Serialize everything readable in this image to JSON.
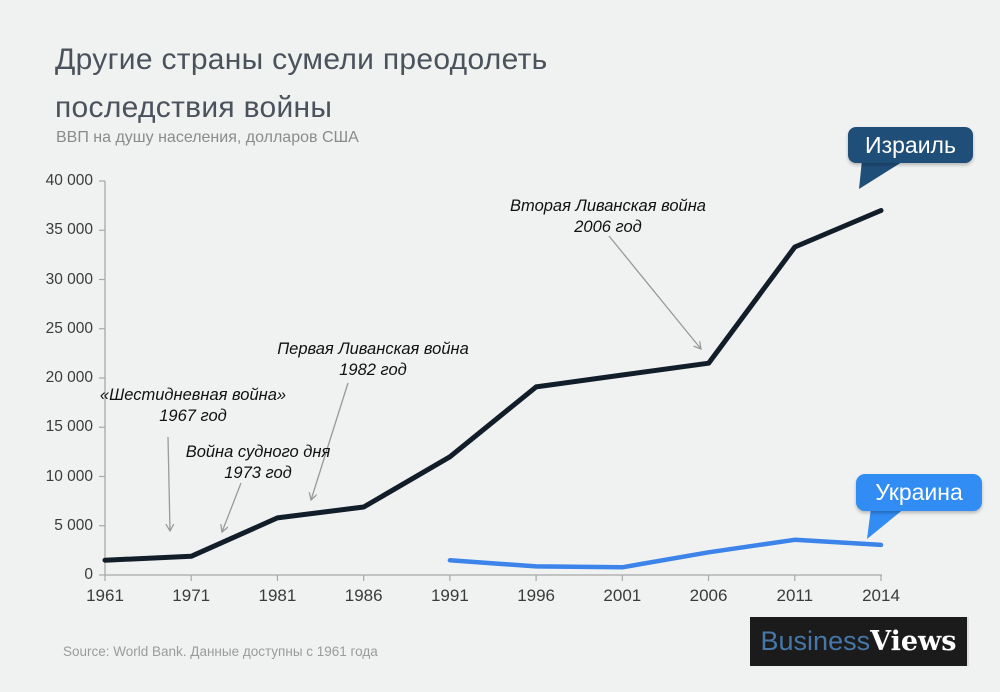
{
  "page": {
    "title_line1": "Другие страны сумели преодолеть",
    "title_line2": "последствия войны",
    "subtitle": "ВВП на душу населения, долларов США",
    "source": "Source: World Bank. Данные доступны с 1961 года"
  },
  "logo": {
    "part1": "Business",
    "part2": "Views"
  },
  "colors": {
    "background": "#f0f1f1",
    "title_text": "#4a525c",
    "axis": "#a8a8a8",
    "tick_label": "#3b3b3b",
    "israel_line": "#121d2a",
    "ukraine_line": "#3c83ea",
    "israel_badge": "#1f4e79",
    "ukraine_badge": "#318cf3",
    "arrow": "#9a9a9a",
    "annotation_text": "#111111",
    "logo_background": "#1b1b1b",
    "logo_business": "#4677a8",
    "logo_views": "#ffffff"
  },
  "chart_data": {
    "type": "line",
    "title": "Другие страны сумели преодолеть последствия войны",
    "subtitle": "ВВП на душу населения, долларов США",
    "xlabel": "",
    "ylabel": "ВВП на душу населения, долларов США",
    "categories": [
      "1961",
      "1971",
      "1981",
      "1986",
      "1991",
      "1996",
      "2001",
      "2006",
      "2011",
      "2014"
    ],
    "ylim": [
      0,
      40000
    ],
    "ytick_step": 5000,
    "ytick_labels": [
      "0",
      "5 000",
      "10 000",
      "15 000",
      "20 000",
      "25 000",
      "30 000",
      "35 000",
      "40 000"
    ],
    "grid": false,
    "legend_style": "callout-badges-on-line-ends",
    "series": [
      {
        "name": "Израиль",
        "color": "#121d2a",
        "values": [
          1500,
          1900,
          5800,
          6900,
          12000,
          19100,
          20300,
          21500,
          33300,
          37000
        ]
      },
      {
        "name": "Украина",
        "color": "#3c83ea",
        "values": [
          null,
          null,
          null,
          null,
          1490,
          870,
          780,
          2300,
          3570,
          3060
        ]
      }
    ],
    "annotations": [
      {
        "line1": "«Шестидневная война»",
        "line2": "1967 год",
        "event_year": "1967"
      },
      {
        "line1": "Война судного дня",
        "line2": "1973 год",
        "event_year": "1973"
      },
      {
        "line1": "Первая Ливанская война",
        "line2": "1982 год",
        "event_year": "1982"
      },
      {
        "line1": "Вторая Ливанская война",
        "line2": "2006 год",
        "event_year": "2006"
      }
    ]
  }
}
